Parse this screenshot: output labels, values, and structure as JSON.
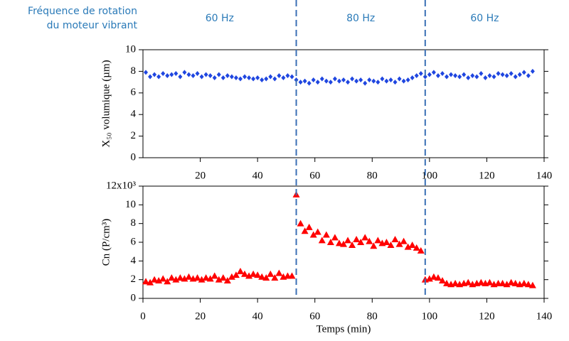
{
  "chart_data": [
    {
      "type": "scatter",
      "ylabel": "X₅₀ volumique (µm)",
      "marker": "diamond",
      "color": "#1f46e0",
      "x": [
        1,
        2.5,
        4,
        5.5,
        7,
        8.5,
        10,
        11.5,
        13,
        14.5,
        16,
        17.5,
        19,
        20.5,
        22,
        23.5,
        25,
        26.5,
        28,
        29.5,
        31,
        32.5,
        34,
        35.5,
        37,
        38.5,
        40,
        41.5,
        43,
        44.5,
        46,
        47.5,
        49,
        50.5,
        52,
        53.5,
        55,
        56.5,
        58,
        59.5,
        61,
        62.5,
        64,
        65.5,
        67,
        68.5,
        70,
        71.5,
        73,
        74.5,
        76,
        77.5,
        79,
        80.5,
        82,
        83.5,
        85,
        86.5,
        88,
        89.5,
        91,
        92.5,
        94,
        95.5,
        97,
        98.5,
        100,
        101.5,
        103,
        104.5,
        106,
        107.5,
        109,
        110.5,
        112,
        113.5,
        115,
        116.5,
        118,
        119.5,
        121,
        122.5,
        124,
        125.5,
        127,
        128.5,
        130,
        131.5,
        133,
        134.5,
        136
      ],
      "values": [
        7.9,
        7.5,
        7.7,
        7.5,
        7.8,
        7.6,
        7.7,
        7.8,
        7.5,
        7.9,
        7.7,
        7.6,
        7.8,
        7.5,
        7.7,
        7.6,
        7.4,
        7.7,
        7.4,
        7.6,
        7.5,
        7.4,
        7.3,
        7.5,
        7.4,
        7.3,
        7.4,
        7.2,
        7.3,
        7.5,
        7.3,
        7.6,
        7.4,
        7.6,
        7.5,
        7.2,
        7.0,
        7.1,
        6.9,
        7.2,
        7.0,
        7.3,
        7.1,
        7.0,
        7.3,
        7.1,
        7.2,
        7.0,
        7.3,
        7.1,
        7.2,
        6.9,
        7.2,
        7.1,
        7.0,
        7.3,
        7.1,
        7.2,
        7.0,
        7.3,
        7.1,
        7.2,
        7.4,
        7.6,
        7.8,
        7.5,
        7.7,
        7.9,
        7.6,
        7.8,
        7.5,
        7.7,
        7.6,
        7.5,
        7.7,
        7.4,
        7.6,
        7.5,
        7.8,
        7.4,
        7.6,
        7.5,
        7.8,
        7.7,
        7.6,
        7.8,
        7.5,
        7.7,
        7.9,
        7.6,
        8.0
      ],
      "xlim": [
        0,
        140
      ],
      "xticks": [
        20,
        40,
        60,
        80,
        100,
        120,
        140
      ],
      "ylim": [
        0,
        10
      ],
      "yticks": [
        0,
        2,
        4,
        6,
        8,
        10
      ]
    },
    {
      "type": "scatter",
      "ylabel": "Cn (P/cm³)",
      "xlabel": "Temps (min)",
      "marker": "triangle",
      "color": "#ff0000",
      "x": [
        1,
        2.5,
        4,
        5.5,
        7,
        8.5,
        10,
        11.5,
        13,
        14.5,
        16,
        17.5,
        19,
        20.5,
        22,
        23.5,
        25,
        26.5,
        28,
        29.5,
        31,
        32.5,
        34,
        35.5,
        37,
        38.5,
        40,
        41.5,
        43,
        44.5,
        46,
        47.5,
        49,
        50.5,
        52,
        53.5,
        55,
        56.5,
        58,
        59.5,
        61,
        62.5,
        64,
        65.5,
        67,
        68.5,
        70,
        71.5,
        73,
        74.5,
        76,
        77.5,
        79,
        80.5,
        82,
        83.5,
        85,
        86.5,
        88,
        89.5,
        91,
        92.5,
        94,
        95.5,
        97,
        98.5,
        100,
        101.5,
        103,
        104.5,
        106,
        107.5,
        109,
        110.5,
        112,
        113.5,
        115,
        116.5,
        118,
        119.5,
        121,
        122.5,
        124,
        125.5,
        127,
        128.5,
        130,
        131.5,
        133,
        134.5,
        136
      ],
      "values": [
        1.8,
        1.7,
        2.0,
        1.9,
        2.1,
        1.8,
        2.2,
        2.0,
        2.2,
        2.1,
        2.3,
        2.1,
        2.2,
        2.0,
        2.2,
        2.1,
        2.4,
        2.0,
        2.2,
        1.9,
        2.3,
        2.5,
        2.9,
        2.6,
        2.4,
        2.6,
        2.5,
        2.3,
        2.2,
        2.6,
        2.2,
        2.7,
        2.3,
        2.4,
        2.4,
        11.1,
        8.0,
        7.2,
        7.6,
        6.8,
        7.1,
        6.2,
        6.8,
        6.0,
        6.5,
        5.9,
        5.8,
        6.2,
        5.7,
        6.3,
        6.0,
        6.5,
        6.1,
        5.6,
        6.2,
        5.9,
        6.0,
        5.7,
        6.3,
        5.8,
        6.1,
        5.5,
        5.7,
        5.4,
        5.1,
        2.0,
        2.1,
        2.3,
        2.2,
        1.9,
        1.6,
        1.5,
        1.6,
        1.5,
        1.6,
        1.7,
        1.5,
        1.6,
        1.7,
        1.6,
        1.7,
        1.5,
        1.6,
        1.6,
        1.5,
        1.7,
        1.6,
        1.5,
        1.6,
        1.5,
        1.4
      ],
      "xlim": [
        0,
        140
      ],
      "xticks": [
        0,
        20,
        40,
        60,
        80,
        100,
        120,
        140
      ],
      "ylim": [
        0,
        12
      ],
      "yticks": [
        0,
        2,
        4,
        6,
        8,
        10,
        {
          "value": 12,
          "label": "12x10³"
        }
      ]
    }
  ],
  "annotation": [
    "Fréquence de rotation",
    "du moteur vibrant"
  ],
  "regions": [
    "60 Hz",
    "80 Hz",
    "60 Hz"
  ],
  "vlines": [
    53.5,
    98.5
  ],
  "vline_color": "#3a6fb5"
}
